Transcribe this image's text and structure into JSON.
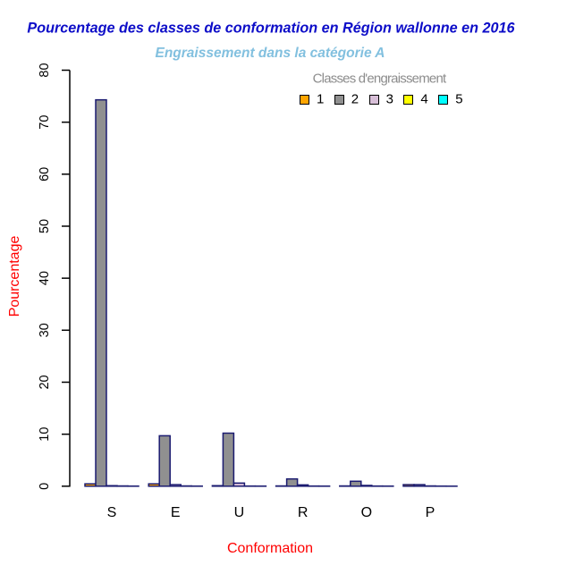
{
  "chart_data": {
    "type": "bar",
    "title": "Pourcentage des classes de conformation en Région wallonne en 2016",
    "subtitle": "Engraissement dans la catégorie A",
    "xlabel": "Conformation",
    "ylabel": "Pourcentage",
    "categories": [
      "S",
      "E",
      "U",
      "R",
      "O",
      "P"
    ],
    "series": [
      {
        "name": "1",
        "color": "#FFA500",
        "values": [
          0.45,
          0.45,
          0.1,
          0.05,
          0.05,
          0.3
        ]
      },
      {
        "name": "2",
        "color": "#909090",
        "values": [
          74.3,
          9.7,
          10.2,
          1.4,
          0.95,
          0.3
        ]
      },
      {
        "name": "3",
        "color": "#D8BFD8",
        "values": [
          0.1,
          0.3,
          0.6,
          0.25,
          0.15,
          0.05
        ]
      },
      {
        "name": "4",
        "color": "#FFFF00",
        "values": [
          0.05,
          0.05,
          0.03,
          0.03,
          0.03,
          0.02
        ]
      },
      {
        "name": "5",
        "color": "#00FFFF",
        "values": [
          0.02,
          0.02,
          0.02,
          0.02,
          0.02,
          0.01
        ]
      }
    ],
    "ylim": [
      0,
      80
    ],
    "yticks": [
      0,
      10,
      20,
      30,
      40,
      50,
      60,
      70,
      80
    ],
    "grid": false,
    "legend": {
      "title": "Classes d'engraissement",
      "position": "top-right",
      "entries": [
        "1",
        "2",
        "3",
        "4",
        "5"
      ]
    },
    "colors": {
      "title": "#0D0DC8",
      "subtitle": "#82C0DF",
      "axis_title": "#FF0000",
      "tick_label": "#000000",
      "axis_line": "#000000",
      "bar_border": "#1B1B70",
      "legend_title": "#8C8C8C",
      "background": "#FFFFFF"
    }
  }
}
